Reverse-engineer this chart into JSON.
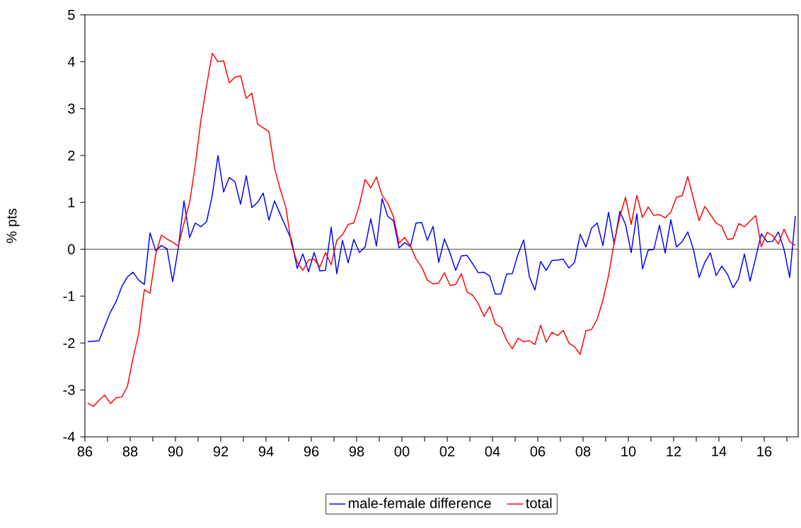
{
  "chart_data": {
    "type": "line",
    "ylabel": "% pts",
    "x": [
      1986.125,
      1986.375,
      1986.625,
      1986.875,
      1987.125,
      1987.375,
      1987.625,
      1987.875,
      1988.125,
      1988.375,
      1988.625,
      1988.875,
      1989.125,
      1989.375,
      1989.625,
      1989.875,
      1990.125,
      1990.375,
      1990.625,
      1990.875,
      1991.125,
      1991.375,
      1991.625,
      1991.875,
      1992.125,
      1992.375,
      1992.625,
      1992.875,
      1993.125,
      1993.375,
      1993.625,
      1993.875,
      1994.125,
      1994.375,
      1994.625,
      1994.875,
      1995.125,
      1995.375,
      1995.625,
      1995.875,
      1996.125,
      1996.375,
      1996.625,
      1996.875,
      1997.125,
      1997.375,
      1997.625,
      1997.875,
      1998.125,
      1998.375,
      1998.625,
      1998.875,
      1999.125,
      1999.375,
      1999.625,
      1999.875,
      2000.125,
      2000.375,
      2000.625,
      2000.875,
      2001.125,
      2001.375,
      2001.625,
      2001.875,
      2002.125,
      2002.375,
      2002.625,
      2002.875,
      2003.125,
      2003.375,
      2003.625,
      2003.875,
      2004.125,
      2004.375,
      2004.625,
      2004.875,
      2005.125,
      2005.375,
      2005.625,
      2005.875,
      2006.125,
      2006.375,
      2006.625,
      2006.875,
      2007.125,
      2007.375,
      2007.625,
      2007.875,
      2008.125,
      2008.375,
      2008.625,
      2008.875,
      2009.125,
      2009.375,
      2009.625,
      2009.875,
      2010.125,
      2010.375,
      2010.625,
      2010.875,
      2011.125,
      2011.375,
      2011.625,
      2011.875,
      2012.125,
      2012.375,
      2012.625,
      2012.875,
      2013.125,
      2013.375,
      2013.625,
      2013.875,
      2014.125,
      2014.375,
      2014.625,
      2014.875,
      2015.125,
      2015.375,
      2015.625,
      2015.875,
      2016.125,
      2016.375,
      2016.625,
      2016.875,
      2017.125,
      2017.375
    ],
    "series": [
      {
        "name": "male-female difference",
        "color": "#0000ff",
        "values": [
          -1.97,
          -1.96,
          -1.95,
          -1.64,
          -1.34,
          -1.12,
          -0.8,
          -0.59,
          -0.49,
          -0.66,
          -0.75,
          0.35,
          -0.03,
          0.08,
          0.01,
          -0.69,
          0.03,
          1.03,
          0.25,
          0.56,
          0.48,
          0.59,
          1.15,
          2.0,
          1.22,
          1.53,
          1.44,
          0.96,
          1.57,
          0.89,
          1.0,
          1.2,
          0.62,
          1.03,
          0.75,
          0.47,
          0.2,
          -0.41,
          -0.1,
          -0.48,
          -0.07,
          -0.46,
          -0.45,
          0.47,
          -0.52,
          0.19,
          -0.29,
          0.21,
          -0.07,
          0.05,
          0.65,
          0.07,
          1.08,
          0.7,
          0.61,
          0.03,
          0.14,
          0.06,
          0.56,
          0.57,
          0.19,
          0.49,
          -0.28,
          0.22,
          -0.08,
          -0.45,
          -0.14,
          -0.13,
          -0.31,
          -0.5,
          -0.49,
          -0.57,
          -0.96,
          -0.95,
          -0.53,
          -0.52,
          -0.11,
          0.2,
          -0.58,
          -0.87,
          -0.26,
          -0.45,
          -0.24,
          -0.23,
          -0.21,
          -0.4,
          -0.28,
          0.32,
          0.05,
          0.45,
          0.56,
          0.08,
          0.79,
          0.11,
          0.81,
          0.53,
          -0.07,
          0.76,
          -0.42,
          -0.02,
          0.0,
          0.51,
          -0.08,
          0.63,
          0.05,
          0.16,
          0.37,
          0.0,
          -0.6,
          -0.28,
          -0.08,
          -0.56,
          -0.36,
          -0.53,
          -0.82,
          -0.62,
          -0.1,
          -0.68,
          -0.18,
          0.33,
          0.16,
          0.17,
          0.37,
          0.0,
          -0.6,
          0.71
        ]
      },
      {
        "name": "total",
        "color": "#ff0000",
        "values": [
          -3.28,
          -3.35,
          -3.22,
          -3.11,
          -3.29,
          -3.17,
          -3.15,
          -2.93,
          -2.32,
          -1.79,
          -0.86,
          -0.94,
          -0.11,
          0.3,
          0.22,
          0.15,
          0.07,
          0.55,
          1.0,
          1.8,
          2.76,
          3.5,
          4.18,
          4.0,
          4.02,
          3.55,
          3.67,
          3.7,
          3.22,
          3.33,
          2.67,
          2.59,
          2.51,
          1.73,
          1.28,
          0.89,
          0.1,
          -0.28,
          -0.45,
          -0.23,
          -0.21,
          -0.38,
          -0.07,
          -0.33,
          0.19,
          0.31,
          0.53,
          0.56,
          0.95,
          1.49,
          1.31,
          1.54,
          1.15,
          0.98,
          0.7,
          0.13,
          0.25,
          0.07,
          -0.21,
          -0.38,
          -0.66,
          -0.74,
          -0.72,
          -0.5,
          -0.77,
          -0.75,
          -0.52,
          -0.91,
          -0.98,
          -1.16,
          -1.43,
          -1.22,
          -1.59,
          -1.66,
          -1.94,
          -2.12,
          -1.9,
          -1.97,
          -1.95,
          -2.03,
          -1.62,
          -1.98,
          -1.77,
          -1.84,
          -1.73,
          -2.0,
          -2.08,
          -2.24,
          -1.74,
          -1.71,
          -1.49,
          -1.09,
          -0.56,
          0.15,
          0.7,
          1.11,
          0.53,
          1.15,
          0.68,
          0.9,
          0.72,
          0.74,
          0.67,
          0.79,
          1.11,
          1.14,
          1.55,
          1.08,
          0.61,
          0.91,
          0.74,
          0.56,
          0.49,
          0.21,
          0.23,
          0.55,
          0.48,
          0.6,
          0.72,
          0.05,
          0.36,
          0.29,
          0.11,
          0.43,
          0.16,
          0.08
        ]
      }
    ],
    "xlim": [
      1986,
      2017.5
    ],
    "xticks": [
      {
        "value": 1986,
        "label": "86"
      },
      {
        "value": 1987,
        "label": null
      },
      {
        "value": 1988,
        "label": "88"
      },
      {
        "value": 1989,
        "label": null
      },
      {
        "value": 1990,
        "label": "90"
      },
      {
        "value": 1991,
        "label": null
      },
      {
        "value": 1992,
        "label": "92"
      },
      {
        "value": 1993,
        "label": null
      },
      {
        "value": 1994,
        "label": "94"
      },
      {
        "value": 1995,
        "label": null
      },
      {
        "value": 1996,
        "label": "96"
      },
      {
        "value": 1997,
        "label": null
      },
      {
        "value": 1998,
        "label": "98"
      },
      {
        "value": 1999,
        "label": null
      },
      {
        "value": 2000,
        "label": "00"
      },
      {
        "value": 2001,
        "label": null
      },
      {
        "value": 2002,
        "label": "02"
      },
      {
        "value": 2003,
        "label": null
      },
      {
        "value": 2004,
        "label": "04"
      },
      {
        "value": 2005,
        "label": null
      },
      {
        "value": 2006,
        "label": "06"
      },
      {
        "value": 2007,
        "label": null
      },
      {
        "value": 2008,
        "label": "08"
      },
      {
        "value": 2009,
        "label": null
      },
      {
        "value": 2010,
        "label": "10"
      },
      {
        "value": 2011,
        "label": null
      },
      {
        "value": 2012,
        "label": "12"
      },
      {
        "value": 2013,
        "label": null
      },
      {
        "value": 2014,
        "label": "14"
      },
      {
        "value": 2015,
        "label": null
      },
      {
        "value": 2016,
        "label": "16"
      },
      {
        "value": 2017,
        "label": null
      }
    ],
    "ylim": [
      -4,
      5
    ],
    "yticks": [
      -4,
      -3,
      -2,
      -1,
      0,
      1,
      2,
      3,
      4,
      5
    ],
    "ref_lines": [
      {
        "axis": "y",
        "value": 0,
        "color": "#000000"
      }
    ],
    "grid": false,
    "legend": "bottom",
    "marker": "none",
    "line_style": "solid"
  }
}
